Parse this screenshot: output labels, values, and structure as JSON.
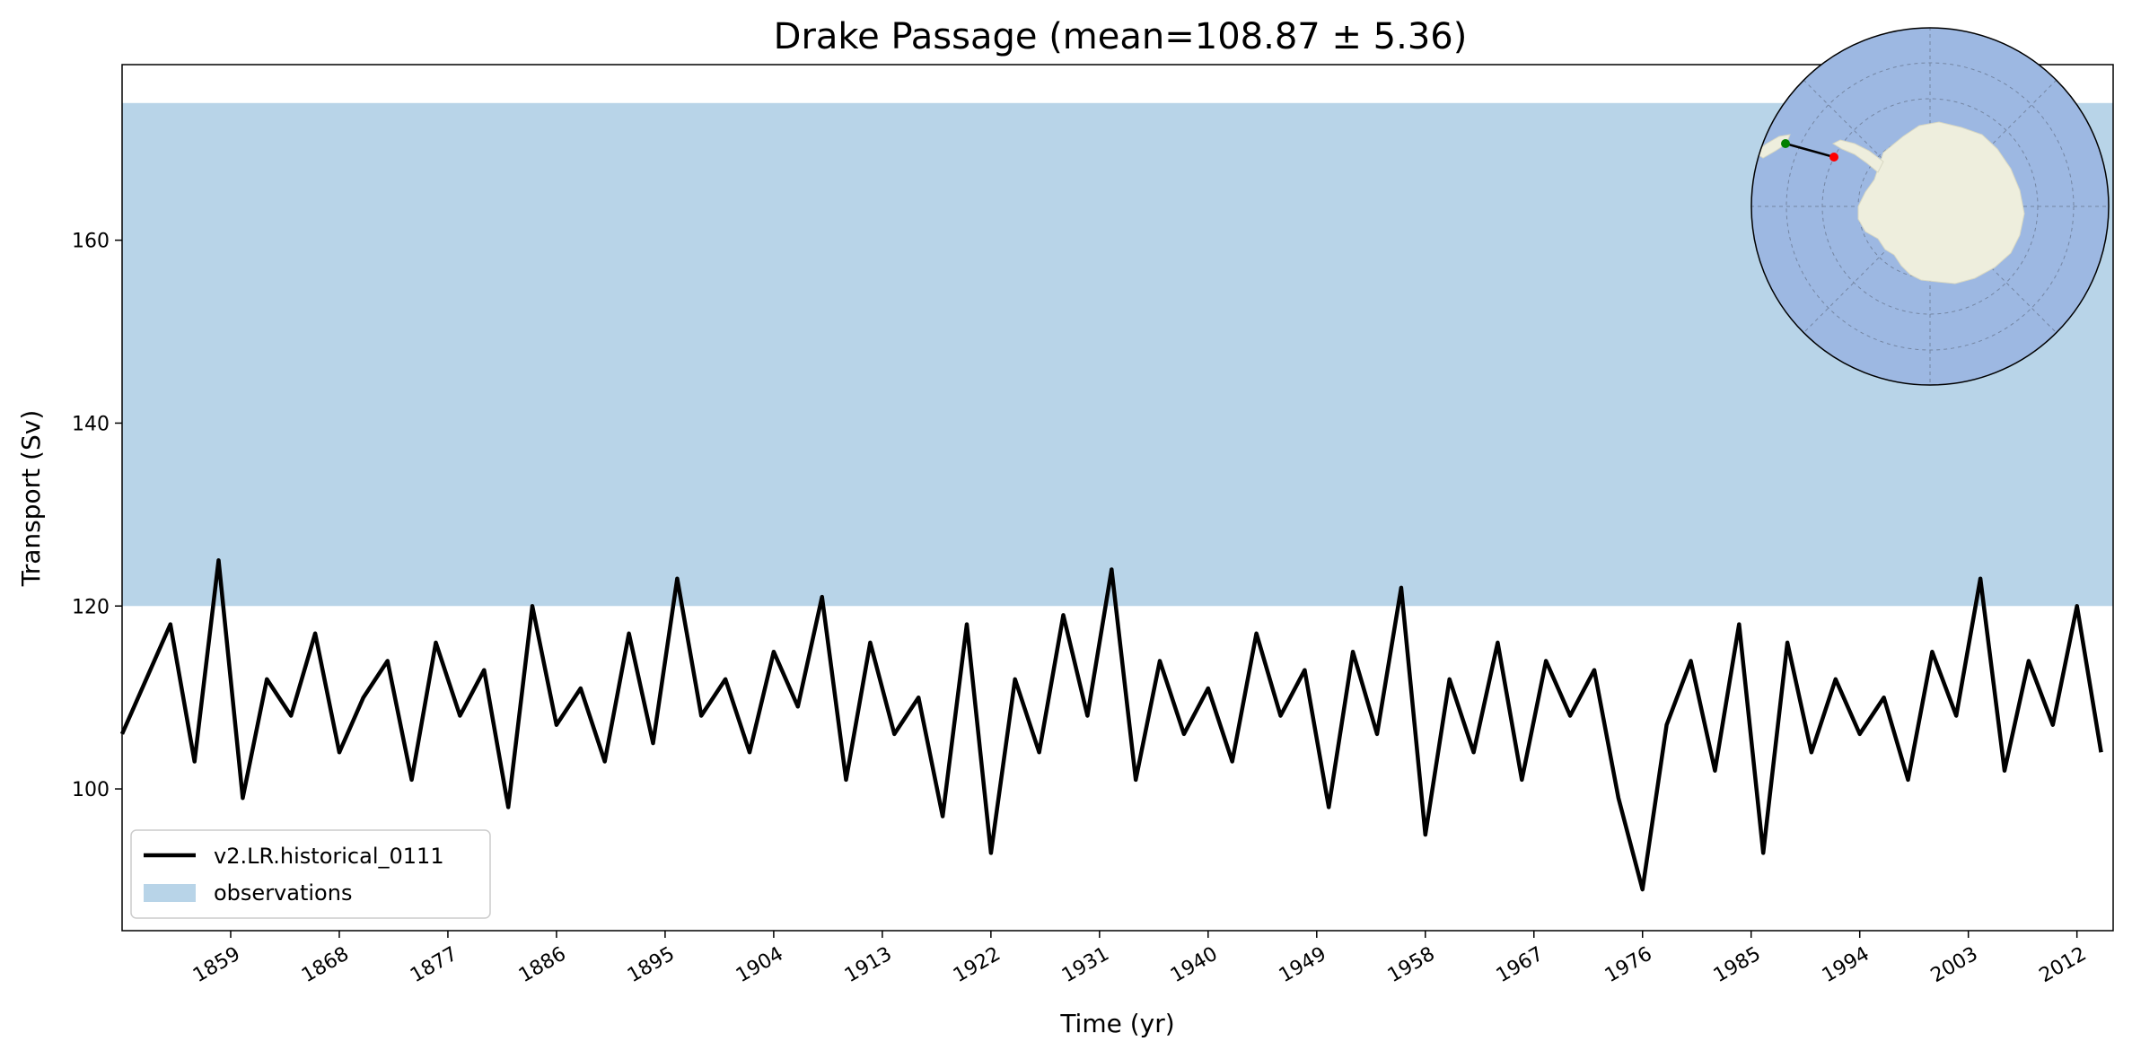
{
  "chart_data": {
    "type": "line",
    "title": "Drake Passage (mean=108.87 ± 5.36)",
    "xlabel": "Time (yr)",
    "ylabel": "Transport (Sv)",
    "xlim": [
      1850,
      2015
    ],
    "ylim": [
      84.5,
      179.2
    ],
    "xticks": [
      1859,
      1868,
      1877,
      1886,
      1895,
      1904,
      1913,
      1922,
      1931,
      1940,
      1949,
      1958,
      1967,
      1976,
      1985,
      1994,
      2003,
      2012
    ],
    "xtick_labels": [
      "1859",
      "1868",
      "1877",
      "1886",
      "1895",
      "1904",
      "1913",
      "1922",
      "1931",
      "1940",
      "1949",
      "1958",
      "1967",
      "1976",
      "1985",
      "1994",
      "2003",
      "2012"
    ],
    "yticks": [
      100,
      120,
      140,
      160
    ],
    "ytick_labels": [
      "100",
      "120",
      "140",
      "160"
    ],
    "grid": false,
    "legend_position": "lower-left",
    "series": [
      {
        "name": "v2.LR.historical_0111",
        "color": "#000000",
        "x": [
          1850,
          1852,
          1854,
          1856,
          1858,
          1860,
          1862,
          1864,
          1866,
          1868,
          1870,
          1872,
          1874,
          1876,
          1878,
          1880,
          1882,
          1884,
          1886,
          1888,
          1890,
          1892,
          1894,
          1896,
          1898,
          1900,
          1902,
          1904,
          1906,
          1908,
          1910,
          1912,
          1914,
          1916,
          1918,
          1920,
          1922,
          1924,
          1926,
          1928,
          1930,
          1932,
          1934,
          1936,
          1938,
          1940,
          1942,
          1944,
          1946,
          1948,
          1950,
          1952,
          1954,
          1956,
          1958,
          1960,
          1962,
          1964,
          1966,
          1968,
          1970,
          1972,
          1974,
          1976,
          1978,
          1980,
          1982,
          1984,
          1986,
          1988,
          1990,
          1992,
          1994,
          1996,
          1998,
          2000,
          2002,
          2004,
          2006,
          2008,
          2010,
          2012,
          2014
        ],
        "y": [
          106,
          112,
          118,
          103,
          125,
          99,
          112,
          108,
          117,
          104,
          110,
          114,
          101,
          116,
          108,
          113,
          98,
          120,
          107,
          111,
          103,
          117,
          105,
          123,
          108,
          112,
          104,
          115,
          109,
          121,
          101,
          116,
          106,
          110,
          97,
          118,
          93,
          112,
          104,
          119,
          108,
          124,
          101,
          114,
          106,
          111,
          103,
          117,
          108,
          113,
          98,
          115,
          106,
          122,
          95,
          112,
          104,
          116,
          101,
          114,
          108,
          113,
          99,
          89,
          107,
          114,
          102,
          118,
          93,
          116,
          104,
          112,
          106,
          110,
          101,
          115,
          108,
          123,
          102,
          114,
          107,
          120,
          104
        ]
      }
    ],
    "shaded_band": {
      "name": "observations",
      "y0": 120,
      "y1": 175,
      "color": "#b8d4e8"
    },
    "inset_map": {
      "projection": "south polar stereographic",
      "ocean_color": "#9db8e2",
      "land_color": "#eeeedd",
      "start_marker_color": "#008000",
      "end_marker_color": "#ff0000"
    }
  }
}
